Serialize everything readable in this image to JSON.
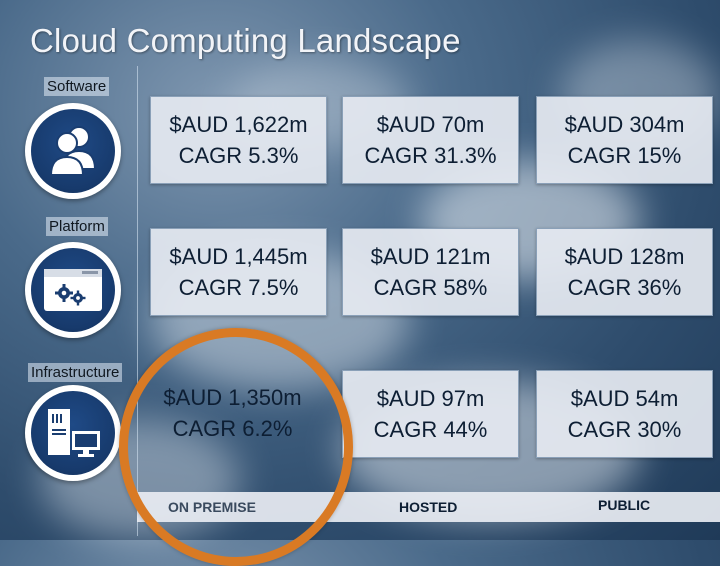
{
  "title": "Cloud Computing Landscape",
  "rows": [
    {
      "label": "Software",
      "icon": "users-icon"
    },
    {
      "label": "Platform",
      "icon": "browser-gears-icon"
    },
    {
      "label": "Infrastructure",
      "icon": "server-monitor-icon"
    }
  ],
  "columns": [
    "ON PREMISE",
    "HOSTED",
    "PUBLIC"
  ],
  "cells": [
    [
      {
        "value": "$AUD 1,622m",
        "cagr": "CAGR 5.3%"
      },
      {
        "value": "$AUD 70m",
        "cagr": "CAGR 31.3%"
      },
      {
        "value": "$AUD 304m",
        "cagr": "CAGR 15%"
      }
    ],
    [
      {
        "value": "$AUD 1,445m",
        "cagr": "CAGR 7.5%"
      },
      {
        "value": "$AUD 121m",
        "cagr": "CAGR 58%"
      },
      {
        "value": "$AUD 128m",
        "cagr": "CAGR 36%"
      }
    ],
    [
      {
        "value": "$AUD 1,350m",
        "cagr": "CAGR 6.2%"
      },
      {
        "value": "$AUD 97m",
        "cagr": "CAGR 44%"
      },
      {
        "value": "$AUD 54m",
        "cagr": "CAGR 30%"
      }
    ]
  ],
  "colors": {
    "highlight_ring": "#d97a24",
    "icon_blue": "#1f4a86",
    "cell_bg": "#e4e8f0"
  }
}
